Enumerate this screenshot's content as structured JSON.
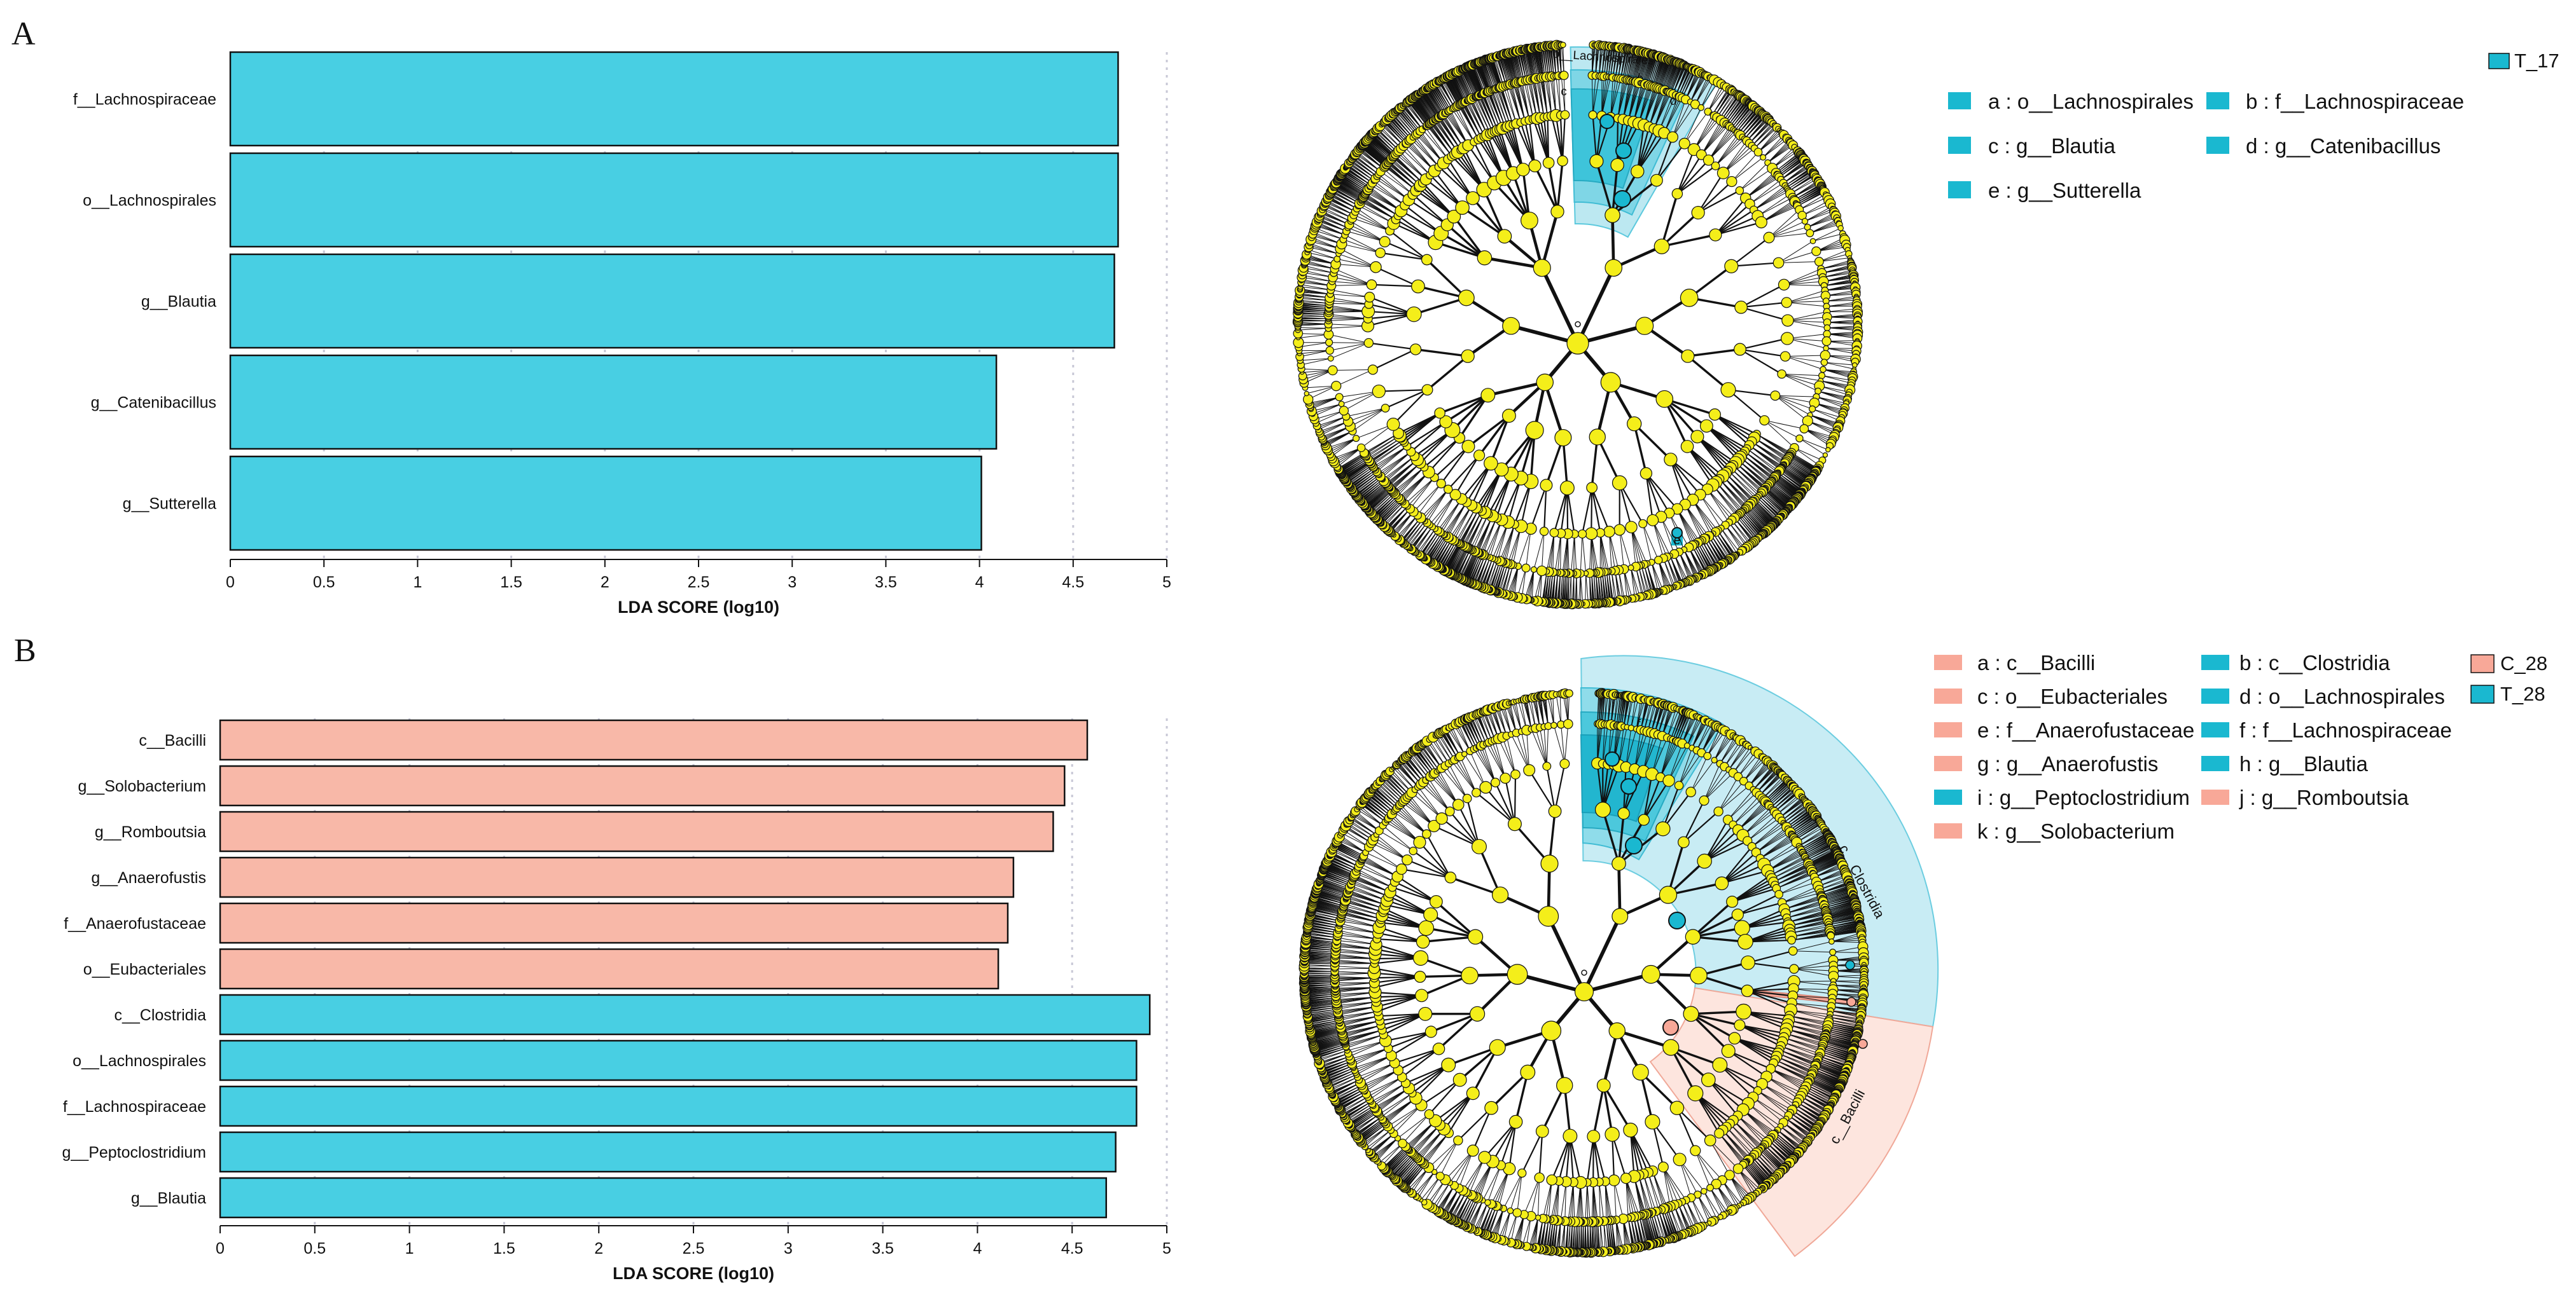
{
  "panels": [
    {
      "letter": "A",
      "chart_data": {
        "type": "bar",
        "orientation": "horizontal",
        "xlabel": "LDA SCORE (log10)",
        "xlim": [
          0,
          5
        ],
        "xticks": [
          "0",
          "0.5",
          "1",
          "1.5",
          "2",
          "2.5",
          "3",
          "3.5",
          "4",
          "4.5",
          "5"
        ],
        "grid": "vertical dotted",
        "categories": [
          "f__Lachnospiraceae",
          "o__Lachnospirales",
          "g__Blautia",
          "g__Catenibacillus",
          "g__Sutterella"
        ],
        "values": [
          4.74,
          4.74,
          4.72,
          4.09,
          4.01
        ],
        "groups": [
          "T_17",
          "T_17",
          "T_17",
          "T_17",
          "T_17"
        ]
      },
      "cladogram": {
        "legend_groups": [
          {
            "name": "T_17",
            "color": "#1ab8d0"
          }
        ],
        "legend_items": [
          {
            "text": "a : o__Lachnospirales",
            "group": "T_17"
          },
          {
            "text": "b : f__Lachnospiraceae",
            "group": "T_17"
          },
          {
            "text": "c : g__Blautia",
            "group": "T_17"
          },
          {
            "text": "d : g__Catenibacillus",
            "group": "T_17"
          },
          {
            "text": "e : g__Sutterella",
            "group": "T_17"
          }
        ],
        "clade_labels": [
          "o__Lachnospirales",
          "b",
          "c",
          "d",
          "e"
        ]
      }
    },
    {
      "letter": "B",
      "chart_data": {
        "type": "bar",
        "orientation": "horizontal",
        "xlabel": "LDA SCORE (log10)",
        "xlim": [
          0,
          5
        ],
        "xticks": [
          "0",
          "0.5",
          "1",
          "1.5",
          "2",
          "2.5",
          "3",
          "3.5",
          "4",
          "4.5",
          "5"
        ],
        "grid": "vertical dotted",
        "categories": [
          "c__Bacilli",
          "g__Solobacterium",
          "g__Romboutsia",
          "g__Anaerofustis",
          "f__Anaerofustaceae",
          "o__Eubacteriales",
          "c__Clostridia",
          "o__Lachnospirales",
          "f__Lachnospiraceae",
          "g__Peptoclostridium",
          "g__Blautia"
        ],
        "values": [
          4.58,
          4.46,
          4.4,
          4.19,
          4.16,
          4.11,
          4.91,
          4.84,
          4.84,
          4.73,
          4.68
        ],
        "groups": [
          "C_28",
          "C_28",
          "C_28",
          "C_28",
          "C_28",
          "C_28",
          "T_28",
          "T_28",
          "T_28",
          "T_28",
          "T_28"
        ]
      },
      "cladogram": {
        "legend_groups": [
          {
            "name": "C_28",
            "color": "#f8a898"
          },
          {
            "name": "T_28",
            "color": "#1ab8d0"
          }
        ],
        "legend_items": [
          {
            "text": "a : c__Bacilli",
            "group": "C_28"
          },
          {
            "text": "b : c__Clostridia",
            "group": "T_28"
          },
          {
            "text": "c : o__Eubacteriales",
            "group": "C_28"
          },
          {
            "text": "d : o__Lachnospirales",
            "group": "T_28"
          },
          {
            "text": "e : f__Anaerofustaceae",
            "group": "C_28"
          },
          {
            "text": "f : f__Lachnospiraceae",
            "group": "T_28"
          },
          {
            "text": "g : g__Anaerofustis",
            "group": "C_28"
          },
          {
            "text": "h : g__Blautia",
            "group": "T_28"
          },
          {
            "text": "i : g__Peptoclostridium",
            "group": "T_28"
          },
          {
            "text": "j : g__Romboutsia",
            "group": "C_28"
          },
          {
            "text": "k : g__Solobacterium",
            "group": "C_28"
          }
        ],
        "clade_labels": [
          "c__Clostridia",
          "c__Bacilli",
          "d",
          "f"
        ]
      }
    }
  ],
  "colors": {
    "T": "#48cfe3",
    "C": "#f8b8a8",
    "T_legend": "#1ab8d0",
    "C_legend": "#f8a898",
    "node": "#f4ee1a",
    "T_shade": "#bce8f1",
    "C_shade": "#fce4dc"
  }
}
